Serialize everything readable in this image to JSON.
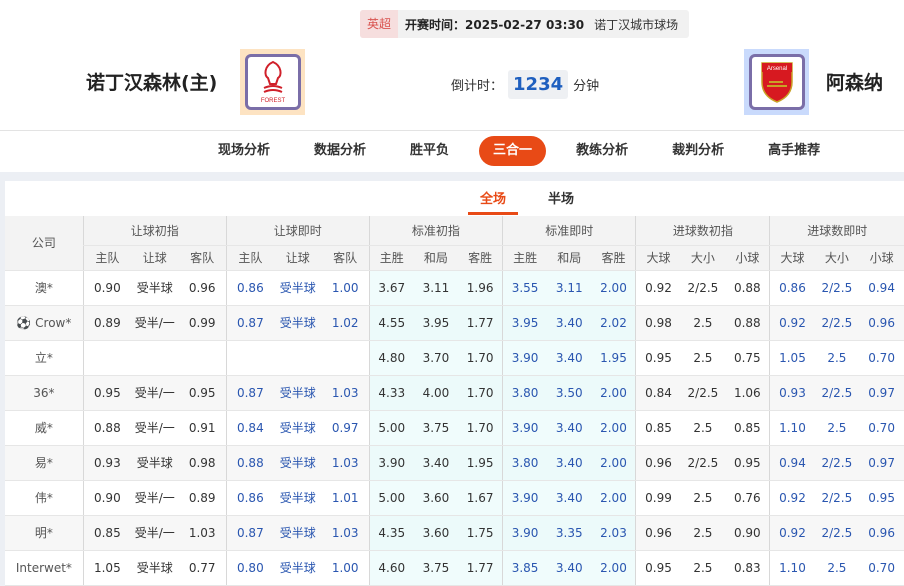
{
  "match": {
    "league": "英超",
    "kickoff": "开赛时间：2025-02-27 03:30",
    "venue": "诺丁汉城市球场",
    "home": "诺丁汉森林(主)",
    "away": "阿森纳",
    "home_logo": "FOREST",
    "away_logo": "Arsenal",
    "countdown_label": "倒计时：",
    "countdown": "1234",
    "countdown_unit": "分钟"
  },
  "nav": [
    "现场分析",
    "数据分析",
    "胜平负",
    "三合一",
    "教练分析",
    "裁判分析",
    "高手推荐"
  ],
  "nav_active": 3,
  "subtabs": [
    "全场",
    "半场"
  ],
  "table": {
    "company_header": "公司",
    "groups": [
      "让球初指",
      "让球即时",
      "标准初指",
      "标准即时",
      "进球数初指",
      "进球数即时"
    ],
    "subheaders": [
      "主队",
      "让球",
      "客队",
      "主队",
      "让球",
      "客队",
      "主胜",
      "和局",
      "客胜",
      "主胜",
      "和局",
      "客胜",
      "大球",
      "大小",
      "小球",
      "大球",
      "大小",
      "小球"
    ],
    "rows": [
      {
        "company": "澳*",
        "v": [
          "0.90",
          "受半球",
          "0.96",
          "0.86",
          "受半球",
          "1.00",
          "3.67",
          "3.11",
          "1.96",
          "3.55",
          "3.11",
          "2.00",
          "0.92",
          "2/2.5",
          "0.88",
          "0.86",
          "2/2.5",
          "0.94"
        ]
      },
      {
        "company": "Crow*",
        "icon": "soccer-ball",
        "v": [
          "0.89",
          "受半/一",
          "0.99",
          "0.87",
          "受半球",
          "1.02",
          "4.55",
          "3.95",
          "1.77",
          "3.95",
          "3.40",
          "2.02",
          "0.98",
          "2.5",
          "0.88",
          "0.92",
          "2/2.5",
          "0.96"
        ]
      },
      {
        "company": "立*",
        "v": [
          "",
          "",
          "",
          "",
          "",
          "",
          "4.80",
          "3.70",
          "1.70",
          "3.90",
          "3.40",
          "1.95",
          "0.95",
          "2.5",
          "0.75",
          "1.05",
          "2.5",
          "0.70"
        ]
      },
      {
        "company": "36*",
        "v": [
          "0.95",
          "受半/一",
          "0.95",
          "0.87",
          "受半球",
          "1.03",
          "4.33",
          "4.00",
          "1.70",
          "3.80",
          "3.50",
          "2.00",
          "0.84",
          "2/2.5",
          "1.06",
          "0.93",
          "2/2.5",
          "0.97"
        ]
      },
      {
        "company": "威*",
        "v": [
          "0.88",
          "受半/一",
          "0.91",
          "0.84",
          "受半球",
          "0.97",
          "5.00",
          "3.75",
          "1.70",
          "3.90",
          "3.40",
          "2.00",
          "0.85",
          "2.5",
          "0.85",
          "1.10",
          "2.5",
          "0.70"
        ]
      },
      {
        "company": "易*",
        "v": [
          "0.93",
          "受半球",
          "0.98",
          "0.88",
          "受半球",
          "1.03",
          "3.90",
          "3.40",
          "1.95",
          "3.80",
          "3.40",
          "2.00",
          "0.96",
          "2/2.5",
          "0.95",
          "0.94",
          "2/2.5",
          "0.97"
        ]
      },
      {
        "company": "伟*",
        "v": [
          "0.90",
          "受半/一",
          "0.89",
          "0.86",
          "受半球",
          "1.01",
          "5.00",
          "3.60",
          "1.67",
          "3.90",
          "3.40",
          "2.00",
          "0.99",
          "2.5",
          "0.76",
          "0.92",
          "2/2.5",
          "0.95"
        ]
      },
      {
        "company": "明*",
        "v": [
          "0.85",
          "受半/一",
          "1.03",
          "0.87",
          "受半球",
          "1.03",
          "4.35",
          "3.60",
          "1.75",
          "3.90",
          "3.35",
          "2.03",
          "0.96",
          "2.5",
          "0.90",
          "0.92",
          "2/2.5",
          "0.96"
        ]
      },
      {
        "company": "Interwet*",
        "v": [
          "1.05",
          "受半球",
          "0.77",
          "0.80",
          "受半球",
          "1.00",
          "4.60",
          "3.75",
          "1.77",
          "3.85",
          "3.40",
          "2.00",
          "0.95",
          "2.5",
          "0.83",
          "1.10",
          "2.5",
          "0.70"
        ]
      }
    ]
  },
  "colors": {
    "accent": "#e84a16",
    "blue": "#2a56b0"
  }
}
